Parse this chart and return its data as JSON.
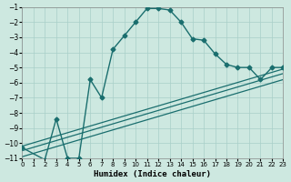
{
  "xlabel": "Humidex (Indice chaleur)",
  "bg_color": "#cde8e0",
  "grid_color": "#a8cfc8",
  "line_color": "#1a6e6e",
  "xlim": [
    0,
    23
  ],
  "ylim_bottom": -11,
  "ylim_top": -1,
  "xticks": [
    0,
    1,
    2,
    3,
    4,
    5,
    6,
    7,
    8,
    9,
    10,
    11,
    12,
    13,
    14,
    15,
    16,
    17,
    18,
    19,
    20,
    21,
    22,
    23
  ],
  "yticks": [
    -1,
    -2,
    -3,
    -4,
    -5,
    -6,
    -7,
    -8,
    -9,
    -10,
    -11
  ],
  "line1_x": [
    0,
    2,
    3,
    4,
    5,
    6,
    7,
    8,
    9,
    10,
    11,
    12,
    13,
    14,
    15,
    16,
    17,
    18,
    19,
    20,
    21,
    22,
    23
  ],
  "line1_y": [
    -10.3,
    -11.1,
    -8.4,
    -11.0,
    -11.0,
    -5.8,
    -7.0,
    -3.8,
    -2.9,
    -2.0,
    -1.1,
    -1.1,
    -1.2,
    -2.0,
    -3.1,
    -3.2,
    -4.1,
    -4.8,
    -5.0,
    -5.0,
    -5.8,
    -5.0,
    -5.0
  ],
  "line2_x": [
    0,
    23
  ],
  "line2_y": [
    -10.2,
    -5.1
  ],
  "line3_x": [
    0,
    23
  ],
  "line3_y": [
    -10.5,
    -5.4
  ],
  "line4_x": [
    0,
    23
  ],
  "line4_y": [
    -10.9,
    -5.8
  ]
}
